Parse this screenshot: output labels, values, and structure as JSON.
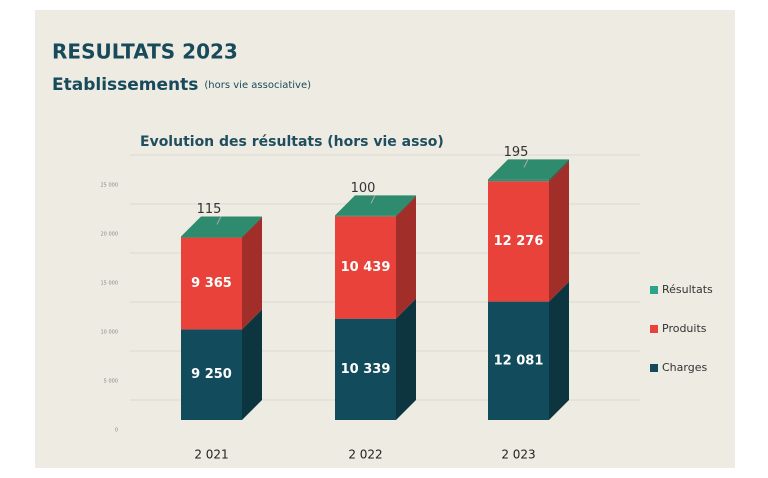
{
  "slide": {
    "title": "RESULTATS 2023",
    "heading": "Etablissements",
    "heading_note": "(hors vie associative)"
  },
  "chart_data": {
    "type": "bar3d_stacked",
    "title": "Evolution des résultats (hors vie asso)",
    "categories": [
      "2 021",
      "2 022",
      "2 023"
    ],
    "series": [
      {
        "name": "Charges",
        "color": "#124b5c",
        "values": [
          9250,
          10339,
          12081
        ],
        "value_labels": [
          "9 250",
          "10 339",
          "12 081"
        ]
      },
      {
        "name": "Produits",
        "color": "#e8423a",
        "values": [
          9365,
          10439,
          12276
        ],
        "value_labels": [
          "9 365",
          "10 439",
          "12 276"
        ]
      },
      {
        "name": "Résultats",
        "color": "#2e8b6e",
        "values": [
          115,
          100,
          195
        ]
      }
    ],
    "ylim": [
      0,
      25000
    ],
    "yticks": [
      0,
      {
        "value": 5000,
        "label": "5 000"
      },
      {
        "value": 10000,
        "label": "10 000"
      },
      {
        "value": 15000,
        "label": "15 000"
      },
      {
        "value": 20000,
        "label": "20 000"
      },
      {
        "value": 25000,
        "label": "25 000"
      }
    ],
    "grid": true,
    "legend": "right"
  }
}
